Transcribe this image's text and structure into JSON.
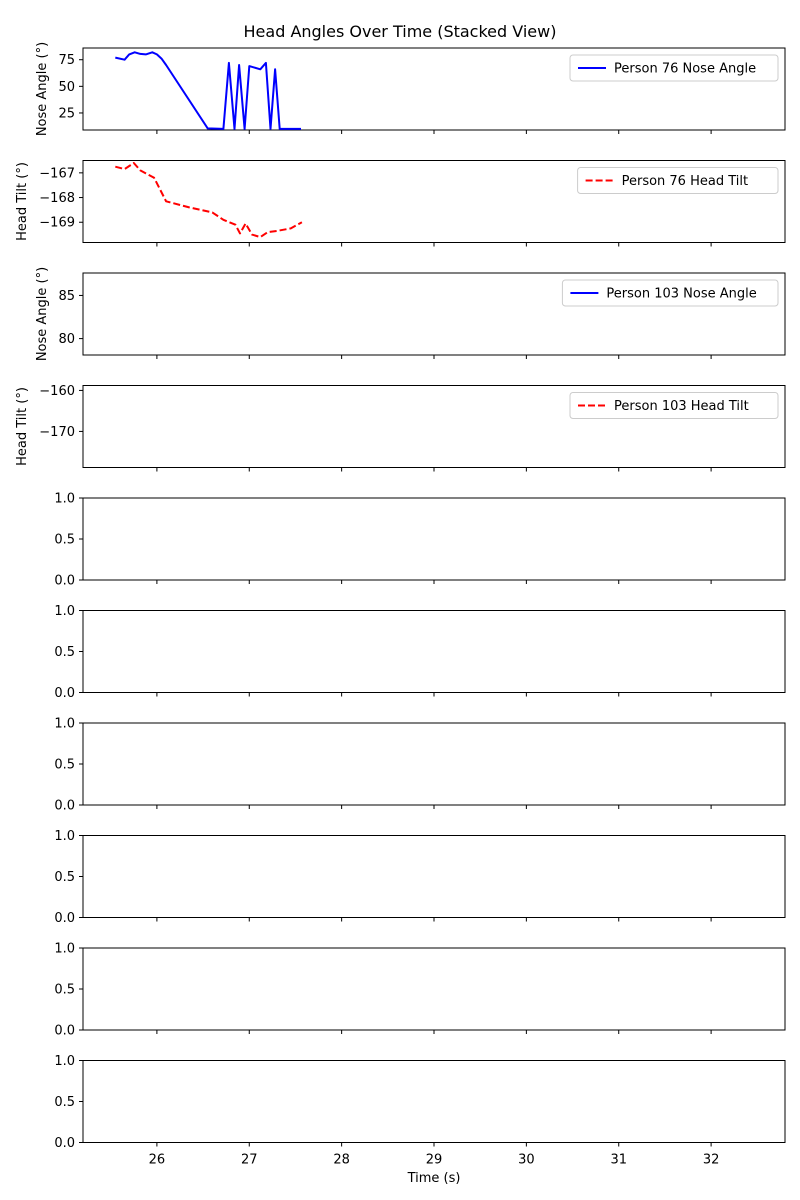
{
  "figure": {
    "title": "Head Angles Over Time (Stacked View)",
    "xlabel": "Time (s)"
  },
  "chart_data": {
    "type": "line",
    "title": "Head Angles Over Time (Stacked View)",
    "xlabel": "Time (s)",
    "xlim": [
      25.2,
      32.8
    ],
    "xticks": [
      26,
      27,
      28,
      29,
      30,
      31,
      32
    ],
    "panels": [
      {
        "ylabel": "Nose Angle (°)",
        "ylim": [
          9,
          86
        ],
        "yticks": [
          25,
          50,
          75
        ],
        "legend": "top-right",
        "series": [
          {
            "name": "Person 76 Nose Angle",
            "color": "#0000ff",
            "style": "solid",
            "x": [
              25.55,
              25.65,
              25.7,
              25.76,
              25.82,
              25.88,
              25.95,
              26.0,
              26.05,
              26.1,
              26.55,
              26.72,
              26.78,
              26.84,
              26.89,
              26.95,
              27.0,
              27.12,
              27.18,
              27.23,
              27.28,
              27.33,
              27.56
            ],
            "y": [
              77,
              75,
              80,
              82,
              80.5,
              80,
              82,
              80,
              76,
              70,
              10.5,
              10,
              72,
              10,
              70,
              10,
              69,
              66,
              72,
              10,
              66,
              10,
              10
            ]
          }
        ]
      },
      {
        "ylabel": "Head Tilt (°)",
        "ylim": [
          -169.82,
          -166.5
        ],
        "yticks": [
          -169,
          -168,
          -167
        ],
        "legend": "top-right",
        "series": [
          {
            "name": "Person 76 Head Tilt",
            "color": "#ff0000",
            "style": "dashed",
            "x": [
              25.55,
              25.65,
              25.75,
              25.82,
              25.97,
              26.1,
              26.35,
              26.6,
              26.72,
              26.85,
              26.9,
              26.96,
              27.03,
              27.12,
              27.2,
              27.3,
              27.45,
              27.57
            ],
            "y": [
              -166.75,
              -166.85,
              -166.6,
              -166.9,
              -167.2,
              -168.15,
              -168.4,
              -168.6,
              -168.9,
              -169.1,
              -169.45,
              -169.05,
              -169.5,
              -169.6,
              -169.4,
              -169.35,
              -169.25,
              -169.0
            ]
          }
        ]
      },
      {
        "ylabel": "Nose Angle (°)",
        "ylim": [
          78.1,
          87.6
        ],
        "yticks": [
          80,
          85
        ],
        "legend": "top-right",
        "series": [
          {
            "name": "Person 103 Nose Angle",
            "color": "#0000ff",
            "style": "solid",
            "x": [],
            "y": []
          }
        ]
      },
      {
        "ylabel": "Head Tilt (°)",
        "ylim": [
          -178.8,
          -158.8
        ],
        "yticks": [
          -170,
          -160
        ],
        "legend": "top-right",
        "series": [
          {
            "name": "Person 103 Head Tilt",
            "color": "#ff0000",
            "style": "dashed",
            "x": [],
            "y": []
          }
        ]
      },
      {
        "ylabel": "",
        "ylim": [
          0,
          1
        ],
        "yticks": [
          0.0,
          0.5,
          1.0
        ],
        "series": []
      },
      {
        "ylabel": "",
        "ylim": [
          0,
          1
        ],
        "yticks": [
          0.0,
          0.5,
          1.0
        ],
        "series": []
      },
      {
        "ylabel": "",
        "ylim": [
          0,
          1
        ],
        "yticks": [
          0.0,
          0.5,
          1.0
        ],
        "series": []
      },
      {
        "ylabel": "",
        "ylim": [
          0,
          1
        ],
        "yticks": [
          0.0,
          0.5,
          1.0
        ],
        "series": []
      },
      {
        "ylabel": "",
        "ylim": [
          0,
          1
        ],
        "yticks": [
          0.0,
          0.5,
          1.0
        ],
        "series": []
      },
      {
        "ylabel": "",
        "ylim": [
          0,
          1
        ],
        "yticks": [
          0.0,
          0.5,
          1.0
        ],
        "series": []
      }
    ]
  }
}
